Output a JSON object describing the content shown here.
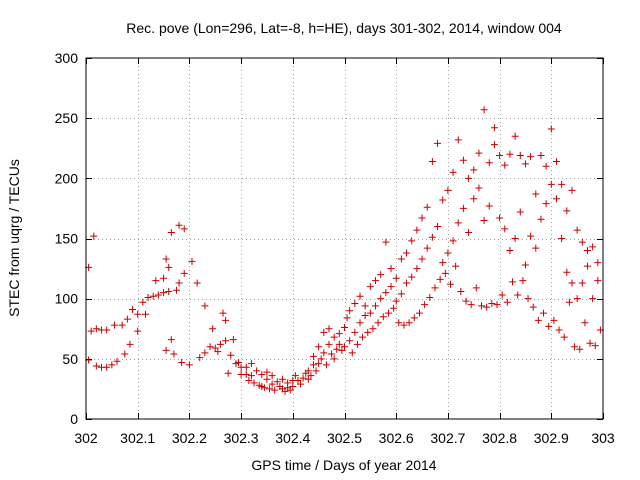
{
  "chart_data": {
    "type": "scatter",
    "title": "Rec. pove (Lon=296, Lat=-8, h=HE), days 301-302, 2014, window 004",
    "xlabel": "GPS time / Days of year 2014",
    "ylabel": "STEC from uqrg / TECUs",
    "xlim": [
      302,
      303
    ],
    "ylim": [
      0,
      300
    ],
    "x_ticks": [
      302,
      302.1,
      302.2,
      302.3,
      302.4,
      302.5,
      302.6,
      302.7,
      302.8,
      302.9,
      303
    ],
    "x_tick_labels": [
      "302",
      "302.1",
      "302.2",
      "302.3",
      "302.4",
      "302.5",
      "302.6",
      "302.7",
      "302.8",
      "302.9",
      "303"
    ],
    "y_ticks": [
      0,
      50,
      100,
      150,
      200,
      250,
      300
    ],
    "y_tick_labels": [
      "0",
      "50",
      "100",
      "150",
      "200",
      "250",
      "300"
    ],
    "grid": true,
    "marker": "+",
    "marker_color": "#cc0000",
    "points": [
      [
        302.005,
        49
      ],
      [
        302.005,
        126
      ],
      [
        302.01,
        73
      ],
      [
        302.015,
        152
      ],
      [
        302.02,
        75
      ],
      [
        302.02,
        44
      ],
      [
        302.03,
        74
      ],
      [
        302.03,
        43
      ],
      [
        302.04,
        74
      ],
      [
        302.04,
        43
      ],
      [
        302.05,
        45
      ],
      [
        302.055,
        78
      ],
      [
        302.06,
        48
      ],
      [
        302.07,
        78
      ],
      [
        302.075,
        54
      ],
      [
        302.08,
        83
      ],
      [
        302.085,
        62
      ],
      [
        302.09,
        91
      ],
      [
        302.1,
        73
      ],
      [
        302.1,
        87
      ],
      [
        302.11,
        97
      ],
      [
        302.115,
        87
      ],
      [
        302.12,
        101
      ],
      [
        302.13,
        102
      ],
      [
        302.135,
        115
      ],
      [
        302.14,
        103
      ],
      [
        302.15,
        105
      ],
      [
        302.15,
        117
      ],
      [
        302.155,
        57
      ],
      [
        302.155,
        133
      ],
      [
        302.16,
        106
      ],
      [
        302.16,
        126
      ],
      [
        302.165,
        155
      ],
      [
        302.165,
        66
      ],
      [
        302.17,
        54
      ],
      [
        302.175,
        107
      ],
      [
        302.18,
        113
      ],
      [
        302.18,
        161
      ],
      [
        302.185,
        47
      ],
      [
        302.19,
        158
      ],
      [
        302.19,
        121
      ],
      [
        302.2,
        45
      ],
      [
        302.205,
        131
      ],
      [
        302.215,
        113
      ],
      [
        302.22,
        51
      ],
      [
        302.23,
        94
      ],
      [
        302.23,
        55
      ],
      [
        302.24,
        60
      ],
      [
        302.245,
        75
      ],
      [
        302.25,
        59
      ],
      [
        302.255,
        56
      ],
      [
        302.26,
        62
      ],
      [
        302.265,
        88
      ],
      [
        302.27,
        82
      ],
      [
        302.27,
        65
      ],
      [
        302.275,
        38
      ],
      [
        302.28,
        53
      ],
      [
        302.285,
        66
      ],
      [
        302.29,
        46
      ],
      [
        302.295,
        47
      ],
      [
        302.3,
        37
      ],
      [
        302.3,
        43
      ],
      [
        302.31,
        37
      ],
      [
        302.31,
        43
      ],
      [
        302.315,
        32
      ],
      [
        302.32,
        46
      ],
      [
        302.32,
        36
      ],
      [
        302.325,
        30
      ],
      [
        302.33,
        40
      ],
      [
        302.335,
        28
      ],
      [
        302.34,
        37
      ],
      [
        302.34,
        27
      ],
      [
        302.345,
        26
      ],
      [
        302.35,
        39
      ],
      [
        302.35,
        33
      ],
      [
        302.355,
        25
      ],
      [
        302.36,
        29
      ],
      [
        302.36,
        36
      ],
      [
        302.365,
        24
      ],
      [
        302.37,
        31
      ],
      [
        302.375,
        27
      ],
      [
        302.38,
        33
      ],
      [
        302.38,
        25
      ],
      [
        302.385,
        23
      ],
      [
        302.39,
        30
      ],
      [
        302.39,
        26
      ],
      [
        302.395,
        24
      ],
      [
        302.4,
        32
      ],
      [
        302.4,
        27
      ],
      [
        302.405,
        36
      ],
      [
        302.41,
        32
      ],
      [
        302.415,
        29
      ],
      [
        302.42,
        34
      ],
      [
        302.425,
        38
      ],
      [
        302.43,
        40
      ],
      [
        302.43,
        33
      ],
      [
        302.435,
        36
      ],
      [
        302.44,
        45
      ],
      [
        302.44,
        52
      ],
      [
        302.445,
        40
      ],
      [
        302.45,
        46
      ],
      [
        302.45,
        60
      ],
      [
        302.455,
        50
      ],
      [
        302.46,
        55
      ],
      [
        302.46,
        72
      ],
      [
        302.465,
        45
      ],
      [
        302.47,
        62
      ],
      [
        302.47,
        75
      ],
      [
        302.475,
        54
      ],
      [
        302.48,
        50
      ],
      [
        302.48,
        68
      ],
      [
        302.485,
        58
      ],
      [
        302.49,
        62
      ],
      [
        302.49,
        71
      ],
      [
        302.495,
        57
      ],
      [
        302.5,
        60
      ],
      [
        302.5,
        76
      ],
      [
        302.505,
        84
      ],
      [
        302.51,
        65
      ],
      [
        302.51,
        90
      ],
      [
        302.515,
        55
      ],
      [
        302.52,
        72
      ],
      [
        302.52,
        96
      ],
      [
        302.525,
        62
      ],
      [
        302.53,
        80
      ],
      [
        302.53,
        102
      ],
      [
        302.535,
        68
      ],
      [
        302.54,
        86
      ],
      [
        302.54,
        94
      ],
      [
        302.545,
        72
      ],
      [
        302.55,
        88
      ],
      [
        302.55,
        110
      ],
      [
        302.555,
        75
      ],
      [
        302.56,
        94
      ],
      [
        302.56,
        115
      ],
      [
        302.565,
        80
      ],
      [
        302.57,
        100
      ],
      [
        302.57,
        120
      ],
      [
        302.575,
        85
      ],
      [
        302.58,
        105
      ],
      [
        302.58,
        147
      ],
      [
        302.585,
        88
      ],
      [
        302.59,
        110
      ],
      [
        302.59,
        125
      ],
      [
        302.595,
        92
      ],
      [
        302.6,
        117
      ],
      [
        302.6,
        98
      ],
      [
        302.605,
        80
      ],
      [
        302.61,
        133
      ],
      [
        302.61,
        104
      ],
      [
        302.615,
        78
      ],
      [
        302.62,
        138
      ],
      [
        302.62,
        113
      ],
      [
        302.625,
        80
      ],
      [
        302.63,
        148
      ],
      [
        302.63,
        118
      ],
      [
        302.635,
        84
      ],
      [
        302.64,
        157
      ],
      [
        302.64,
        125
      ],
      [
        302.645,
        88
      ],
      [
        302.65,
        167
      ],
      [
        302.65,
        133
      ],
      [
        302.655,
        95
      ],
      [
        302.66,
        176
      ],
      [
        302.66,
        142
      ],
      [
        302.665,
        101
      ],
      [
        302.67,
        214
      ],
      [
        302.67,
        151
      ],
      [
        302.675,
        109
      ],
      [
        302.68,
        229
      ],
      [
        302.68,
        160
      ],
      [
        302.685,
        116
      ],
      [
        302.69,
        182
      ],
      [
        302.69,
        130
      ],
      [
        302.695,
        121
      ],
      [
        302.7,
        190
      ],
      [
        302.7,
        138
      ],
      [
        302.705,
        112
      ],
      [
        302.71,
        205
      ],
      [
        302.71,
        148
      ],
      [
        302.715,
        127
      ],
      [
        302.72,
        232
      ],
      [
        302.72,
        163
      ],
      [
        302.725,
        106
      ],
      [
        302.73,
        215
      ],
      [
        302.73,
        175
      ],
      [
        302.735,
        98
      ],
      [
        302.74,
        200
      ],
      [
        302.74,
        155
      ],
      [
        302.745,
        95
      ],
      [
        302.75,
        207
      ],
      [
        302.75,
        183
      ],
      [
        302.755,
        109
      ],
      [
        302.76,
        221
      ],
      [
        302.76,
        192
      ],
      [
        302.765,
        94
      ],
      [
        302.77,
        257
      ],
      [
        302.77,
        165
      ],
      [
        302.775,
        93
      ],
      [
        302.78,
        213
      ],
      [
        302.78,
        177
      ],
      [
        302.785,
        96
      ],
      [
        302.79,
        242
      ],
      [
        302.79,
        228
      ],
      [
        302.795,
        95
      ],
      [
        302.8,
        219
      ],
      [
        302.8,
        167
      ],
      [
        302.805,
        103
      ],
      [
        302.81,
        211
      ],
      [
        302.81,
        158
      ],
      [
        302.815,
        97
      ],
      [
        302.82,
        220
      ],
      [
        302.82,
        140
      ],
      [
        302.825,
        114
      ],
      [
        302.83,
        235
      ],
      [
        302.83,
        150
      ],
      [
        302.835,
        103
      ],
      [
        302.84,
        219
      ],
      [
        302.84,
        172
      ],
      [
        302.845,
        115
      ],
      [
        302.85,
        212
      ],
      [
        302.85,
        128
      ],
      [
        302.855,
        100
      ],
      [
        302.86,
        218
      ],
      [
        302.86,
        152
      ],
      [
        302.865,
        93
      ],
      [
        302.87,
        187
      ],
      [
        302.87,
        142
      ],
      [
        302.875,
        82
      ],
      [
        302.88,
        219
      ],
      [
        302.88,
        166
      ],
      [
        302.885,
        88
      ],
      [
        302.89,
        210
      ],
      [
        302.89,
        179
      ],
      [
        302.895,
        77
      ],
      [
        302.9,
        241
      ],
      [
        302.9,
        195
      ],
      [
        302.905,
        82
      ],
      [
        302.91,
        214
      ],
      [
        302.91,
        183
      ],
      [
        302.915,
        74
      ],
      [
        302.92,
        195
      ],
      [
        302.92,
        150
      ],
      [
        302.925,
        68
      ],
      [
        302.93,
        173
      ],
      [
        302.93,
        122
      ],
      [
        302.935,
        97
      ],
      [
        302.94,
        190
      ],
      [
        302.94,
        113
      ],
      [
        302.945,
        60
      ],
      [
        302.95,
        157
      ],
      [
        302.95,
        100
      ],
      [
        302.955,
        58
      ],
      [
        302.96,
        147
      ],
      [
        302.96,
        113
      ],
      [
        302.965,
        80
      ],
      [
        302.97,
        140
      ],
      [
        302.97,
        127
      ],
      [
        302.975,
        63
      ],
      [
        302.98,
        143
      ],
      [
        302.98,
        100
      ],
      [
        302.985,
        61
      ],
      [
        302.99,
        130
      ],
      [
        302.99,
        115
      ],
      [
        302.995,
        74
      ]
    ]
  }
}
